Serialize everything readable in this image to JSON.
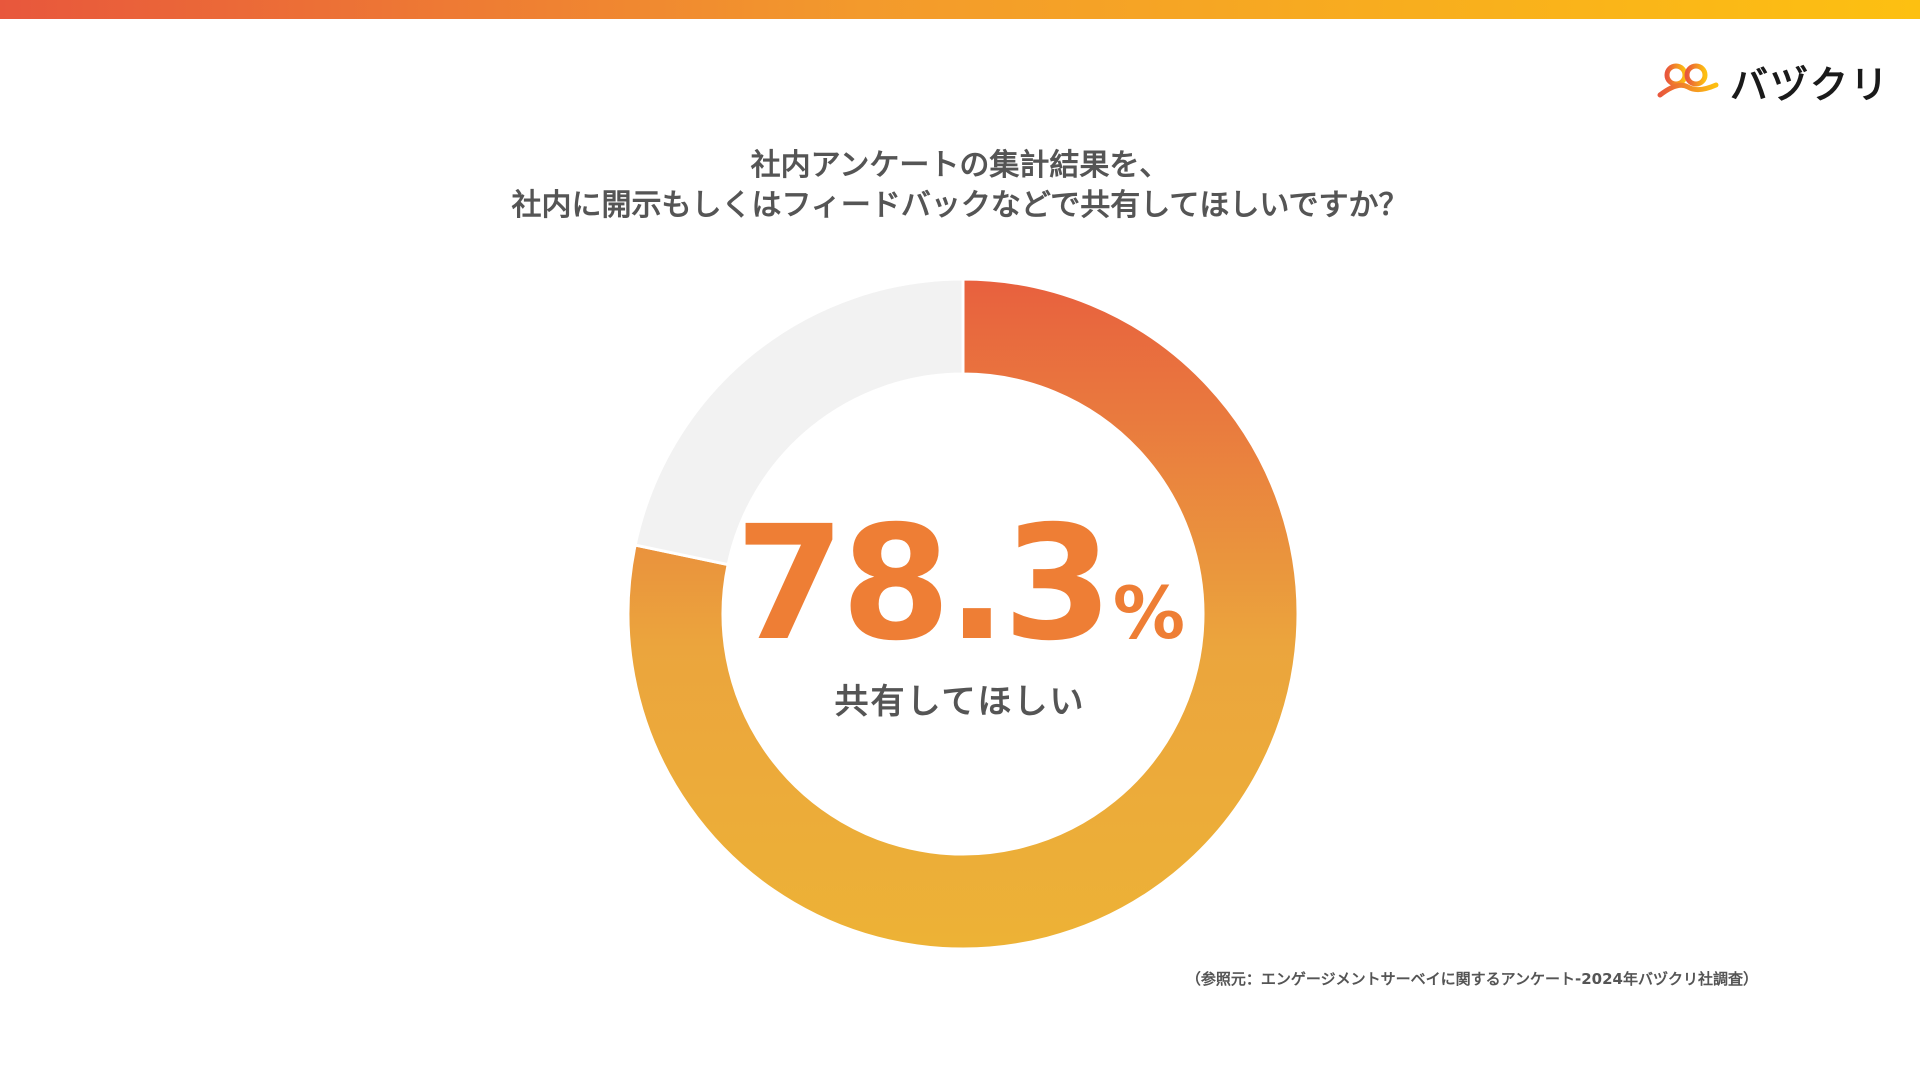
{
  "brand": {
    "logo_text": "バヅクリ",
    "accent_start": "#e8573c",
    "accent_mid": "#f39a2c",
    "accent_end": "#fdc011"
  },
  "title": {
    "line1": "社内アンケートの集計結果を、",
    "line2": "社内に開示もしくはフィードバックなどで共有してほしいですか？"
  },
  "chart_data": {
    "type": "pie",
    "style": "donut",
    "slices": [
      {
        "label": "共有してほしい",
        "value": 78.3,
        "color_top": "#e8603e",
        "color_bottom": "#edb236"
      },
      {
        "label": "",
        "value": 21.7,
        "color": "#f2f2f2"
      }
    ],
    "center_value": "78.3",
    "center_unit": "%",
    "center_label": "共有してほしい"
  },
  "source": "（参照元：エンゲージメントサーベイに関するアンケート-2024年バヅクリ社調査）"
}
